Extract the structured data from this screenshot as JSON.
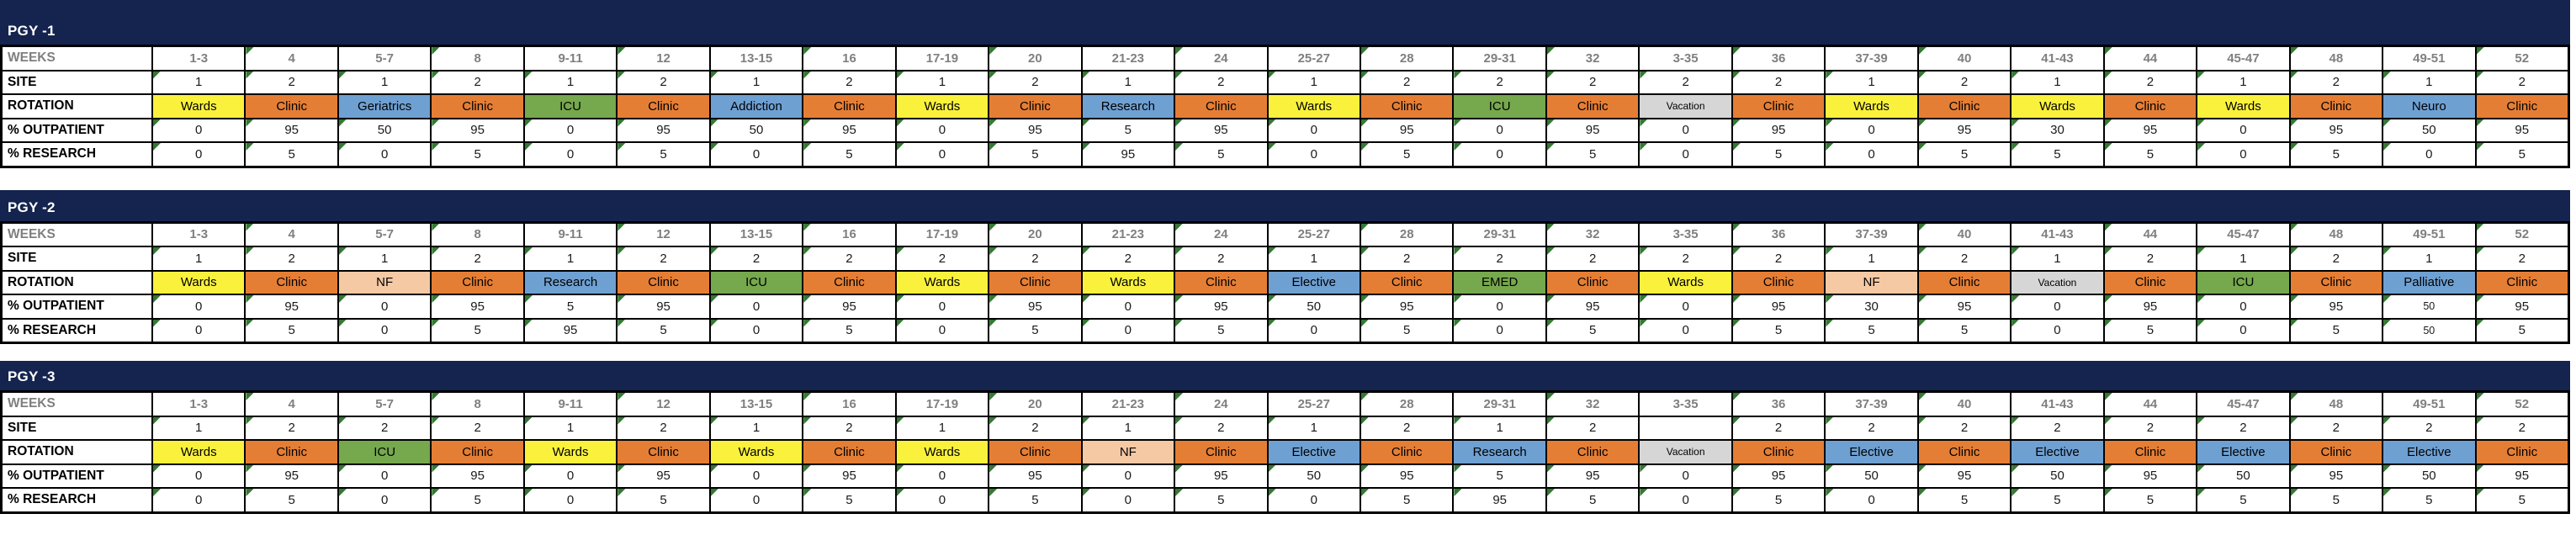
{
  "colors": {
    "header_navy": "#14244F",
    "grid_line": "#000000",
    "week_header_text": "#7F7F7F",
    "error_flag_green": "#337933"
  },
  "rotation_styles": {
    "Wards": {
      "bg": "#F9F13C",
      "text": "#000000"
    },
    "Clinic": {
      "bg": "#E57E35",
      "text": "#000000"
    },
    "Geriatrics": {
      "bg": "#6FA0D2",
      "text": "#000000"
    },
    "Addiction": {
      "bg": "#6FA0D2",
      "text": "#000000"
    },
    "Research": {
      "bg": "#6FA0D2",
      "text": "#000000"
    },
    "Elective": {
      "bg": "#6FA0D2",
      "text": "#000000"
    },
    "Neuro": {
      "bg": "#6FA0D2",
      "text": "#000000"
    },
    "Palliative": {
      "bg": "#6FA0D2",
      "text": "#000000"
    },
    "ICU": {
      "bg": "#76A84D",
      "text": "#000000"
    },
    "EMED": {
      "bg": "#76A84D",
      "text": "#000000"
    },
    "NF": {
      "bg": "#F5C9A4",
      "text": "#000000"
    },
    "Vacation": {
      "bg": "#D6D6D6",
      "text": "#000000"
    }
  },
  "row_labels": {
    "weeks": "WEEKS",
    "site": "SITE",
    "rotation": "ROTATION",
    "outpatient": "% OUTPATIENT",
    "research": "% RESEARCH"
  },
  "sections": [
    {
      "title": "PGY -1",
      "columns": [
        {
          "weeks": "1-3",
          "site": "1",
          "rotation": "Wards",
          "outpatient": "0",
          "research": "0"
        },
        {
          "weeks": "4",
          "site": "2",
          "rotation": "Clinic",
          "outpatient": "95",
          "research": "5"
        },
        {
          "weeks": "5-7",
          "site": "1",
          "rotation": "Geriatrics",
          "outpatient": "50",
          "research": "0"
        },
        {
          "weeks": "8",
          "site": "2",
          "rotation": "Clinic",
          "outpatient": "95",
          "research": "5"
        },
        {
          "weeks": "9-11",
          "site": "1",
          "rotation": "ICU",
          "outpatient": "0",
          "research": "0"
        },
        {
          "weeks": "12",
          "site": "2",
          "rotation": "Clinic",
          "outpatient": "95",
          "research": "5"
        },
        {
          "weeks": "13-15",
          "site": "1",
          "rotation": "Addiction",
          "outpatient": "50",
          "research": "0"
        },
        {
          "weeks": "16",
          "site": "2",
          "rotation": "Clinic",
          "outpatient": "95",
          "research": "5"
        },
        {
          "weeks": "17-19",
          "site": "1",
          "rotation": "Wards",
          "outpatient": "0",
          "research": "0"
        },
        {
          "weeks": "20",
          "site": "2",
          "rotation": "Clinic",
          "outpatient": "95",
          "research": "5"
        },
        {
          "weeks": "21-23",
          "site": "1",
          "rotation": "Research",
          "outpatient": "5",
          "research": "95"
        },
        {
          "weeks": "24",
          "site": "2",
          "rotation": "Clinic",
          "outpatient": "95",
          "research": "5"
        },
        {
          "weeks": "25-27",
          "site": "1",
          "rotation": "Wards",
          "outpatient": "0",
          "research": "0"
        },
        {
          "weeks": "28",
          "site": "2",
          "rotation": "Clinic",
          "outpatient": "95",
          "research": "5"
        },
        {
          "weeks": "29-31",
          "site": "2",
          "rotation": "ICU",
          "outpatient": "0",
          "research": "0"
        },
        {
          "weeks": "32",
          "site": "2",
          "rotation": "Clinic",
          "outpatient": "95",
          "research": "5"
        },
        {
          "weeks": "3-35",
          "site": "2",
          "rotation": "Vacation",
          "outpatient": "0",
          "research": "0"
        },
        {
          "weeks": "36",
          "site": "2",
          "rotation": "Clinic",
          "outpatient": "95",
          "research": "5"
        },
        {
          "weeks": "37-39",
          "site": "1",
          "rotation": "Wards",
          "outpatient": "0",
          "research": "0"
        },
        {
          "weeks": "40",
          "site": "2",
          "rotation": "Clinic",
          "outpatient": "95",
          "research": "5"
        },
        {
          "weeks": "41-43",
          "site": "1",
          "rotation": "Wards",
          "outpatient": "30",
          "research": "5"
        },
        {
          "weeks": "44",
          "site": "2",
          "rotation": "Clinic",
          "outpatient": "95",
          "research": "5"
        },
        {
          "weeks": "45-47",
          "site": "1",
          "rotation": "Wards",
          "outpatient": "0",
          "research": "0"
        },
        {
          "weeks": "48",
          "site": "2",
          "rotation": "Clinic",
          "outpatient": "95",
          "research": "5"
        },
        {
          "weeks": "49-51",
          "site": "1",
          "rotation": "Neuro",
          "outpatient": "50",
          "research": "0"
        },
        {
          "weeks": "52",
          "site": "2",
          "rotation": "Clinic",
          "outpatient": "95",
          "research": "5"
        }
      ]
    },
    {
      "title": "PGY -2",
      "columns": [
        {
          "weeks": "1-3",
          "site": "1",
          "rotation": "Wards",
          "outpatient": "0",
          "research": "0"
        },
        {
          "weeks": "4",
          "site": "2",
          "rotation": "Clinic",
          "outpatient": "95",
          "research": "5"
        },
        {
          "weeks": "5-7",
          "site": "1",
          "rotation": "NF",
          "outpatient": "0",
          "research": "0"
        },
        {
          "weeks": "8",
          "site": "2",
          "rotation": "Clinic",
          "outpatient": "95",
          "research": "5"
        },
        {
          "weeks": "9-11",
          "site": "1",
          "rotation": "Research",
          "outpatient": "5",
          "research": "95"
        },
        {
          "weeks": "12",
          "site": "2",
          "rotation": "Clinic",
          "outpatient": "95",
          "research": "5"
        },
        {
          "weeks": "13-15",
          "site": "2",
          "rotation": "ICU",
          "outpatient": "0",
          "research": "0"
        },
        {
          "weeks": "16",
          "site": "2",
          "rotation": "Clinic",
          "outpatient": "95",
          "research": "5"
        },
        {
          "weeks": "17-19",
          "site": "2",
          "rotation": "Wards",
          "outpatient": "0",
          "research": "0"
        },
        {
          "weeks": "20",
          "site": "2",
          "rotation": "Clinic",
          "outpatient": "95",
          "research": "5"
        },
        {
          "weeks": "21-23",
          "site": "2",
          "rotation": "Wards",
          "outpatient": "0",
          "research": "0"
        },
        {
          "weeks": "24",
          "site": "2",
          "rotation": "Clinic",
          "outpatient": "95",
          "research": "5"
        },
        {
          "weeks": "25-27",
          "site": "1",
          "rotation": "Elective",
          "outpatient": "50",
          "research": "0"
        },
        {
          "weeks": "28",
          "site": "2",
          "rotation": "Clinic",
          "outpatient": "95",
          "research": "5"
        },
        {
          "weeks": "29-31",
          "site": "2",
          "rotation": "EMED",
          "outpatient": "0",
          "research": "0"
        },
        {
          "weeks": "32",
          "site": "2",
          "rotation": "Clinic",
          "outpatient": "95",
          "research": "5"
        },
        {
          "weeks": "3-35",
          "site": "2",
          "rotation": "Wards",
          "outpatient": "0",
          "research": "0"
        },
        {
          "weeks": "36",
          "site": "2",
          "rotation": "Clinic",
          "outpatient": "95",
          "research": "5"
        },
        {
          "weeks": "37-39",
          "site": "1",
          "rotation": "NF",
          "outpatient": "30",
          "research": "5"
        },
        {
          "weeks": "40",
          "site": "2",
          "rotation": "Clinic",
          "outpatient": "95",
          "research": "5"
        },
        {
          "weeks": "41-43",
          "site": "1",
          "rotation": "Vacation",
          "outpatient": "0",
          "research": "0"
        },
        {
          "weeks": "44",
          "site": "2",
          "rotation": "Clinic",
          "outpatient": "95",
          "research": "5"
        },
        {
          "weeks": "45-47",
          "site": "1",
          "rotation": "ICU",
          "outpatient": "0",
          "research": "0"
        },
        {
          "weeks": "48",
          "site": "2",
          "rotation": "Clinic",
          "outpatient": "95",
          "research": "5"
        },
        {
          "weeks": "49-51",
          "site": "1",
          "rotation": "Palliative",
          "outpatient": "50",
          "research": "50",
          "small": true
        },
        {
          "weeks": "52",
          "site": "2",
          "rotation": "Clinic",
          "outpatient": "95",
          "research": "5"
        }
      ]
    },
    {
      "title": "PGY -3",
      "columns": [
        {
          "weeks": "1-3",
          "site": "1",
          "rotation": "Wards",
          "outpatient": "0",
          "research": "0"
        },
        {
          "weeks": "4",
          "site": "2",
          "rotation": "Clinic",
          "outpatient": "95",
          "research": "5"
        },
        {
          "weeks": "5-7",
          "site": "2",
          "rotation": "ICU",
          "outpatient": "0",
          "research": "0"
        },
        {
          "weeks": "8",
          "site": "2",
          "rotation": "Clinic",
          "outpatient": "95",
          "research": "5"
        },
        {
          "weeks": "9-11",
          "site": "1",
          "rotation": "Wards",
          "outpatient": "0",
          "research": "0"
        },
        {
          "weeks": "12",
          "site": "2",
          "rotation": "Clinic",
          "outpatient": "95",
          "research": "5"
        },
        {
          "weeks": "13-15",
          "site": "1",
          "rotation": "Wards",
          "outpatient": "0",
          "research": "0"
        },
        {
          "weeks": "16",
          "site": "2",
          "rotation": "Clinic",
          "outpatient": "95",
          "research": "5"
        },
        {
          "weeks": "17-19",
          "site": "1",
          "rotation": "Wards",
          "outpatient": "0",
          "research": "0"
        },
        {
          "weeks": "20",
          "site": "2",
          "rotation": "Clinic",
          "outpatient": "95",
          "research": "5"
        },
        {
          "weeks": "21-23",
          "site": "1",
          "rotation": "NF",
          "outpatient": "0",
          "research": "0"
        },
        {
          "weeks": "24",
          "site": "2",
          "rotation": "Clinic",
          "outpatient": "95",
          "research": "5"
        },
        {
          "weeks": "25-27",
          "site": "1",
          "rotation": "Elective",
          "outpatient": "50",
          "research": "0"
        },
        {
          "weeks": "28",
          "site": "2",
          "rotation": "Clinic",
          "outpatient": "95",
          "research": "5"
        },
        {
          "weeks": "29-31",
          "site": "1",
          "rotation": "Research",
          "outpatient": "5",
          "research": "95"
        },
        {
          "weeks": "32",
          "site": "2",
          "rotation": "Clinic",
          "outpatient": "95",
          "research": "5"
        },
        {
          "weeks": "3-35",
          "site": "",
          "rotation": "Vacation",
          "outpatient": "0",
          "research": "0"
        },
        {
          "weeks": "36",
          "site": "2",
          "rotation": "Clinic",
          "outpatient": "95",
          "research": "5"
        },
        {
          "weeks": "37-39",
          "site": "2",
          "rotation": "Elective",
          "outpatient": "50",
          "research": "0"
        },
        {
          "weeks": "40",
          "site": "2",
          "rotation": "Clinic",
          "outpatient": "95",
          "research": "5"
        },
        {
          "weeks": "41-43",
          "site": "2",
          "rotation": "Elective",
          "outpatient": "50",
          "research": "5"
        },
        {
          "weeks": "44",
          "site": "2",
          "rotation": "Clinic",
          "outpatient": "95",
          "research": "5"
        },
        {
          "weeks": "45-47",
          "site": "2",
          "rotation": "Elective",
          "outpatient": "50",
          "research": "5"
        },
        {
          "weeks": "48",
          "site": "2",
          "rotation": "Clinic",
          "outpatient": "95",
          "research": "5"
        },
        {
          "weeks": "49-51",
          "site": "2",
          "rotation": "Elective",
          "outpatient": "50",
          "research": "5"
        },
        {
          "weeks": "52",
          "site": "2",
          "rotation": "Clinic",
          "outpatient": "95",
          "research": "5"
        }
      ]
    }
  ]
}
